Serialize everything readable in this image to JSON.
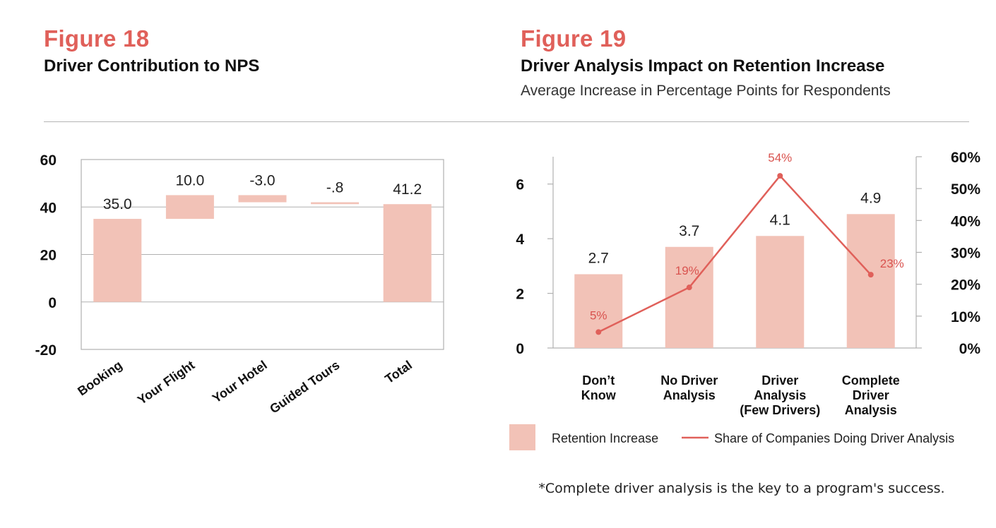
{
  "figure18": {
    "label": "Figure 18",
    "title": "Driver Contribution to NPS"
  },
  "figure19": {
    "label": "Figure 19",
    "title": "Driver Analysis Impact on Retention Increase",
    "subtitle": "Average Increase in Percentage Points for Respondents"
  },
  "footnote": "*Complete driver analysis is the key to a program's success.",
  "colors": {
    "accent": "#e0605a",
    "bar": "#f2c2b7",
    "line": "#e0605a",
    "gridline": "#b0b0b0"
  },
  "chart_data": [
    {
      "type": "bar",
      "subtype": "waterfall",
      "title": "Driver Contribution to NPS",
      "categories": [
        "Booking",
        "Your Flight",
        "Your Hotel",
        "Guided Tours",
        "Total"
      ],
      "values": [
        35.0,
        10.0,
        -3.0,
        -0.8,
        41.2
      ],
      "data_labels": [
        "35.0",
        "10.0",
        "-3.0",
        "-.8",
        "41.2"
      ],
      "ylim": [
        -20,
        60
      ],
      "yticks": [
        60,
        40,
        20,
        0,
        -20
      ],
      "ytick_labels": [
        "60",
        "40",
        "20",
        "0",
        "-20"
      ],
      "grid": true
    },
    {
      "type": "bar",
      "title": "Driver Analysis Impact on Retention Increase",
      "categories": [
        [
          "Don’t",
          "Know"
        ],
        [
          "No Driver",
          "Analysis"
        ],
        [
          "Driver",
          "Analysis",
          "(Few Drivers)"
        ],
        [
          "Complete",
          "Driver",
          "Analysis"
        ]
      ],
      "series": [
        {
          "name": "Retention Increase",
          "type": "bar",
          "axis": "left",
          "values": [
            2.7,
            3.7,
            4.1,
            4.9
          ],
          "data_labels": [
            "2.7",
            "3.7",
            "4.1",
            "4.9"
          ]
        },
        {
          "name": "Share of Companies Doing Driver Analysis",
          "type": "line",
          "axis": "right",
          "values": [
            5,
            19,
            54,
            23
          ],
          "data_labels": [
            "5%",
            "19%",
            "54%",
            "23%"
          ]
        }
      ],
      "ylim_left": [
        0,
        7
      ],
      "yticks_left": [
        "0",
        "2",
        "4",
        "6"
      ],
      "ylim_right": [
        0,
        60
      ],
      "yticks_right": [
        "0%",
        "10%",
        "20%",
        "30%",
        "40%",
        "50%",
        "60%"
      ],
      "legend": "bottom",
      "grid": false
    }
  ]
}
